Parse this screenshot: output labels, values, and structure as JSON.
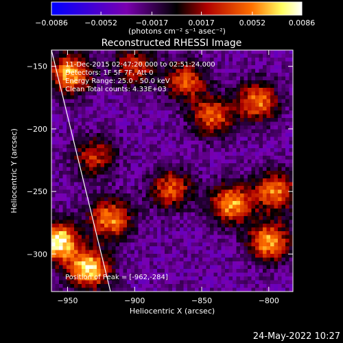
{
  "chart_data": {
    "type": "heatmap",
    "title": "Reconstructed RHESSI Image",
    "xlabel": "Heliocentric X (arcsec)",
    "ylabel": "Heliocentric Y (arcsec)",
    "xlim": [
      -962,
      -782
    ],
    "ylim": [
      -330,
      -137
    ],
    "x_ticks": [
      -950,
      -900,
      -850,
      -800
    ],
    "x_tick_labels": [
      "−950",
      "−900",
      "−850",
      "−800"
    ],
    "y_ticks": [
      -150,
      -200,
      -250,
      -300
    ],
    "y_tick_labels": [
      "−150",
      "−200",
      "−250",
      "−300"
    ],
    "colorbar": {
      "min": -0.0086,
      "max": 0.0086,
      "ticks": [
        -0.0086,
        -0.0052,
        -0.0017,
        0.0017,
        0.0052,
        0.0086
      ],
      "tick_labels": [
        "−0.0086",
        "−0.0052",
        "−0.0017",
        "0.0017",
        "0.0052",
        "0.0086"
      ],
      "unit_label": "(photons cm⁻² s⁻¹ asec⁻²)",
      "colors": [
        "#0000ff",
        "#7a00b0",
        "#000000",
        "#b00000",
        "#ff7000",
        "#ffff60",
        "#ffffff"
      ]
    },
    "annotations": [
      "11-Dec-2015 02:47:20.000 to 02:51:24.000",
      "Detectors: 1F 5F 7F, Att 0",
      "Energy Range: 25.0 - 50.0 keV",
      "Clean     Total counts: 4.33E+03",
      "Position of Peak = [-962,-284]"
    ],
    "peak": [
      -962,
      -284
    ],
    "limb_line": [
      [
        -962,
        -137
      ],
      [
        -918,
        -330
      ]
    ],
    "sources": [
      {
        "x": -958,
        "y": -290,
        "value": 0.0086
      },
      {
        "x": -934,
        "y": -312,
        "value": 0.0075
      },
      {
        "x": -948,
        "y": -156,
        "value": 0.0065
      },
      {
        "x": -918,
        "y": -272,
        "value": 0.0055
      },
      {
        "x": -828,
        "y": -260,
        "value": 0.006
      },
      {
        "x": -800,
        "y": -290,
        "value": 0.006
      },
      {
        "x": -795,
        "y": -250,
        "value": 0.005
      },
      {
        "x": -808,
        "y": -178,
        "value": 0.005
      },
      {
        "x": -842,
        "y": -190,
        "value": 0.0045
      },
      {
        "x": -873,
        "y": -248,
        "value": 0.004
      },
      {
        "x": -862,
        "y": -162,
        "value": 0.004
      },
      {
        "x": -930,
        "y": -222,
        "value": 0.003
      },
      {
        "x": -900,
        "y": -150,
        "value": 0.003
      }
    ]
  },
  "timestamp": "24-May-2022 10:27"
}
